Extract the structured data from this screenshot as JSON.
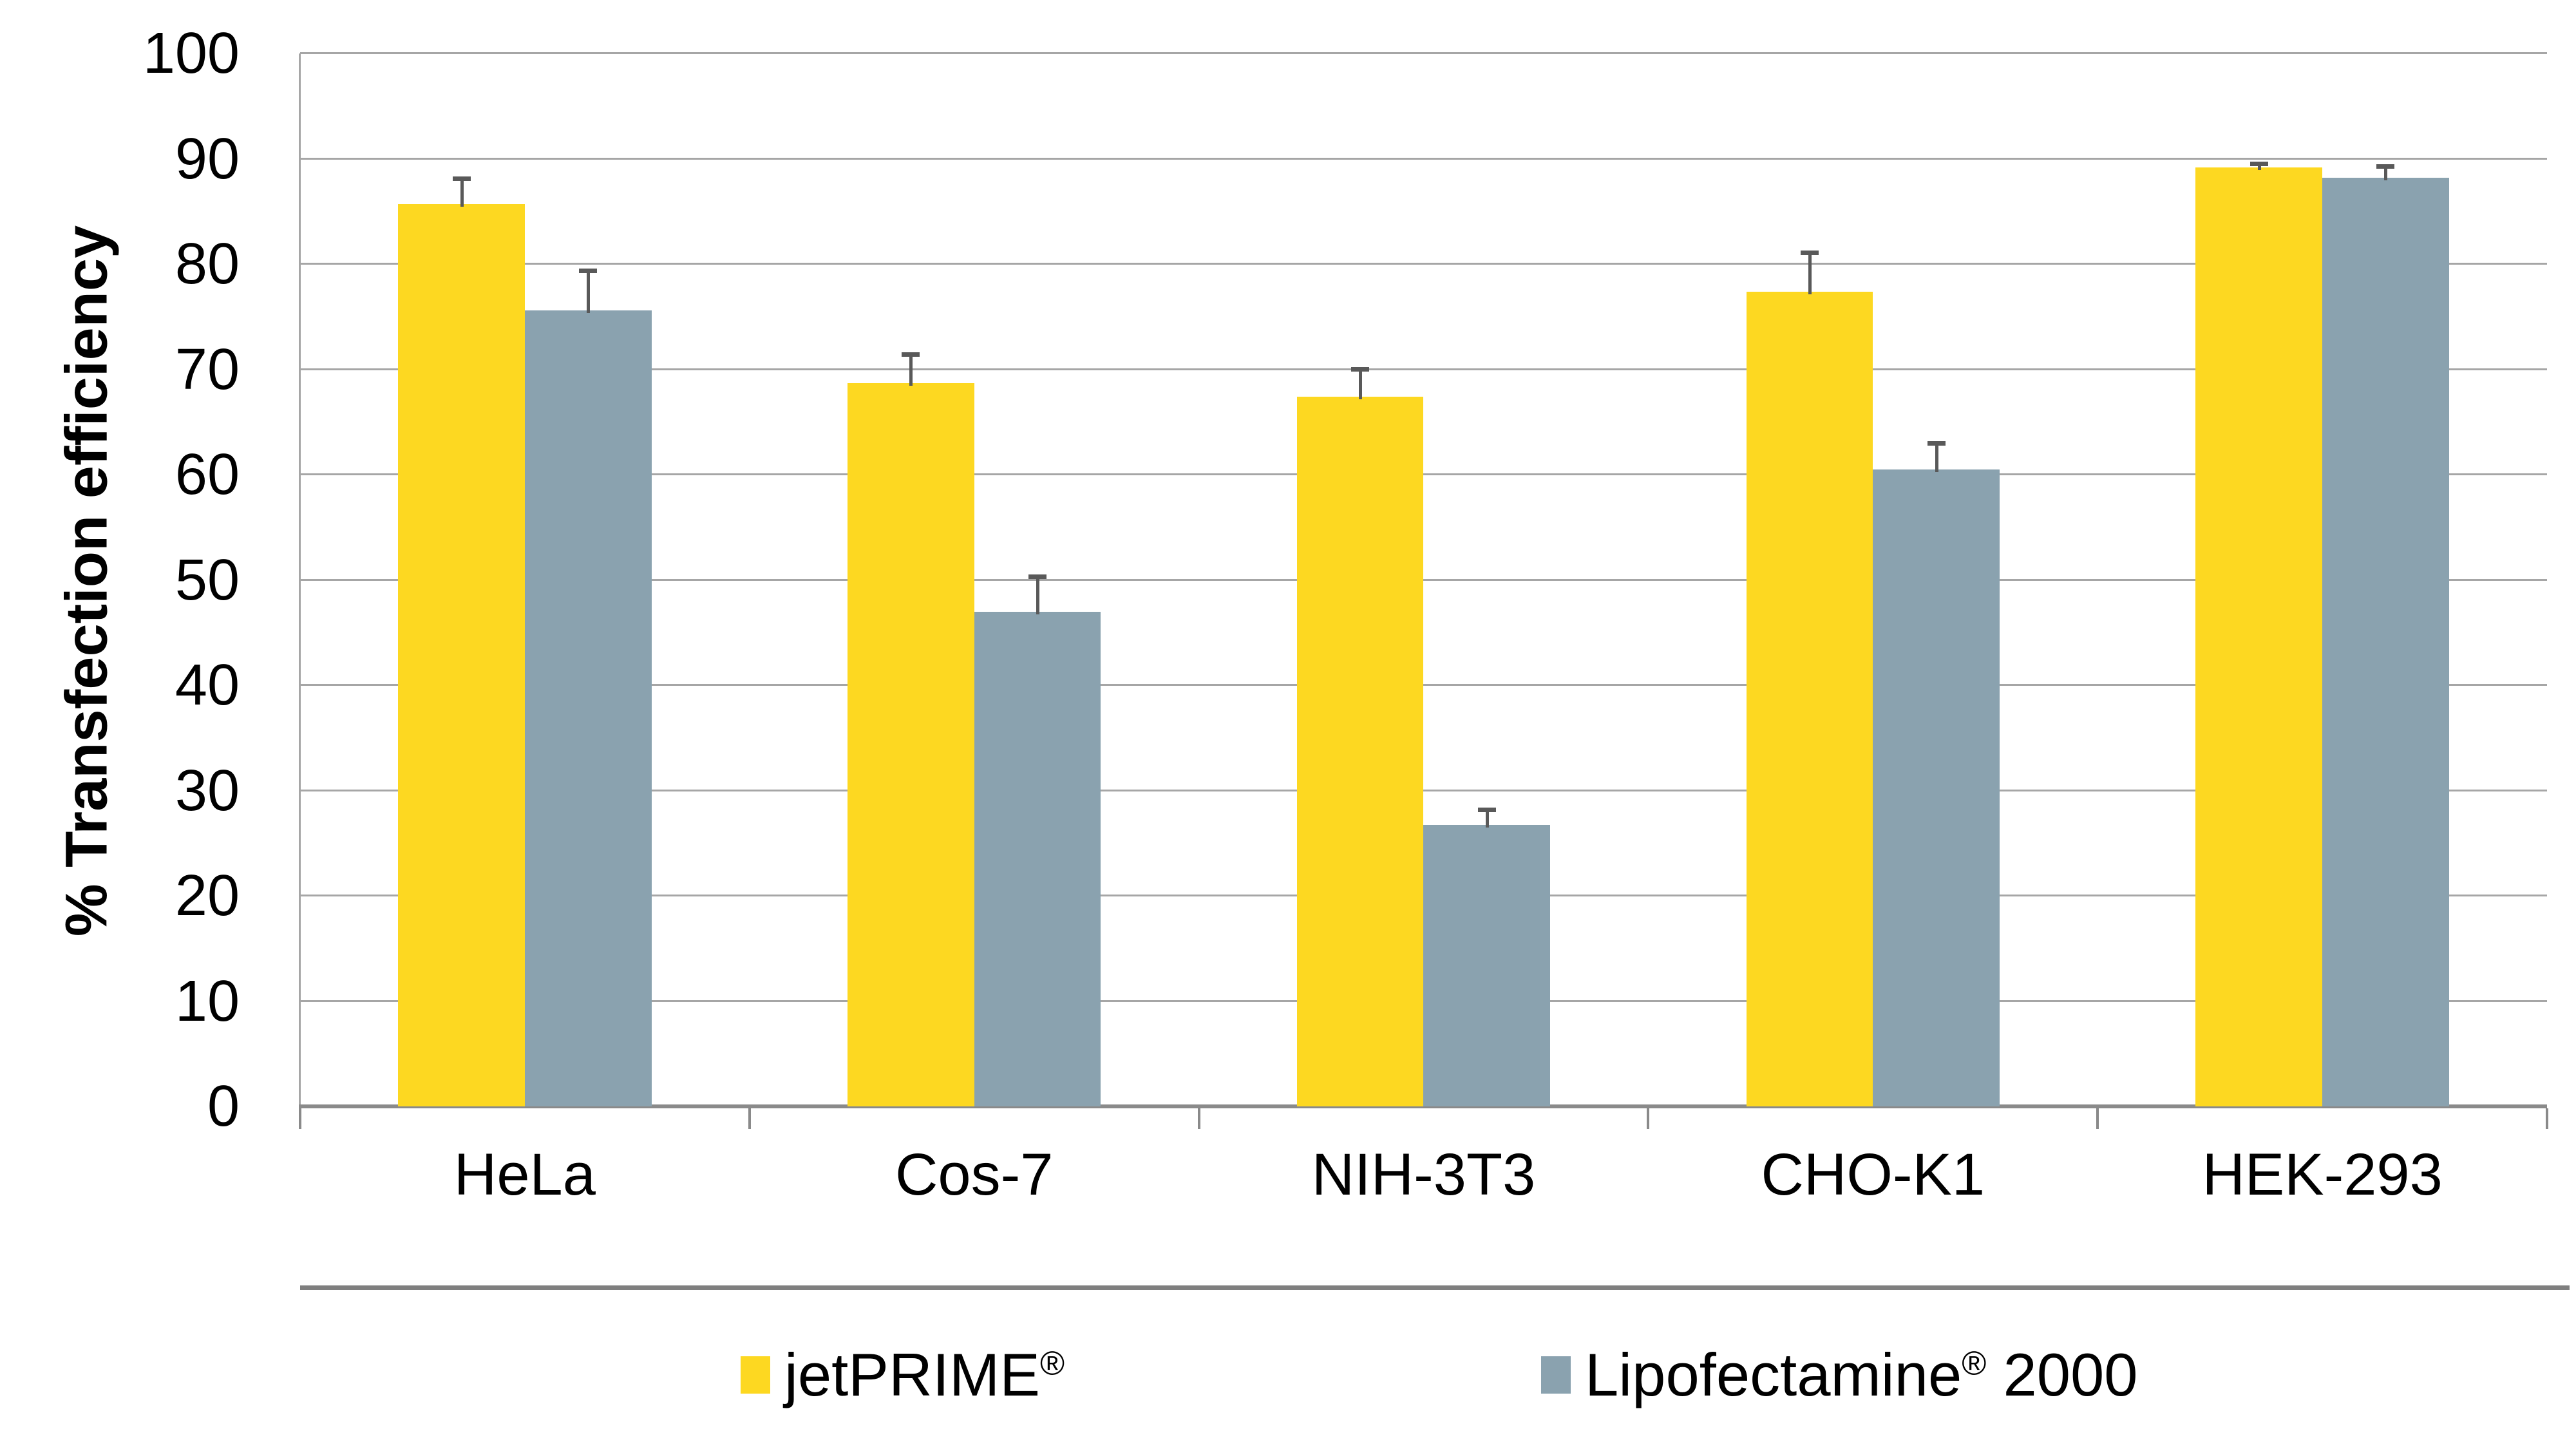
{
  "chart_data": {
    "type": "bar",
    "title": "",
    "xlabel": "",
    "ylabel": "% Transfection efficiency",
    "ylim": [
      0,
      100
    ],
    "yticks": [
      0,
      10,
      20,
      30,
      40,
      50,
      60,
      70,
      80,
      90,
      100
    ],
    "categories": [
      "HeLa",
      "Cos-7",
      "NIH-3T3",
      "CHO-K1",
      "HEK-293"
    ],
    "series": [
      {
        "name": "jetPRIME®",
        "color": "#FDD821",
        "values": [
          85.7,
          68.7,
          67.4,
          77.4,
          89.2
        ],
        "errors_plus": [
          2.6,
          2.9,
          2.8,
          3.9,
          0.5
        ]
      },
      {
        "name": "Lipofectamine® 2000",
        "color": "#8AA2AF",
        "values": [
          75.6,
          47.0,
          26.7,
          60.5,
          88.2
        ],
        "errors_plus": [
          4.0,
          3.5,
          1.7,
          2.7,
          1.3
        ]
      }
    ],
    "grid": "horizontal",
    "legend_position": "bottom"
  },
  "legend": {
    "items": [
      {
        "base": "jetPRIME",
        "reg": "®",
        "suffix": "",
        "color": "#FDD821"
      },
      {
        "base": "Lipofectamine",
        "reg": "®",
        "suffix": " 2000",
        "color": "#8AA2AF"
      }
    ]
  },
  "style_colors": {
    "bar_yellow": "#FDD821",
    "bar_bluegray": "#8AA2AF",
    "gridline": "#A6A6A6",
    "axis": "#8A8A8A",
    "error_bar": "#595959",
    "divider": "#7F7F7F",
    "text": "#000000"
  }
}
